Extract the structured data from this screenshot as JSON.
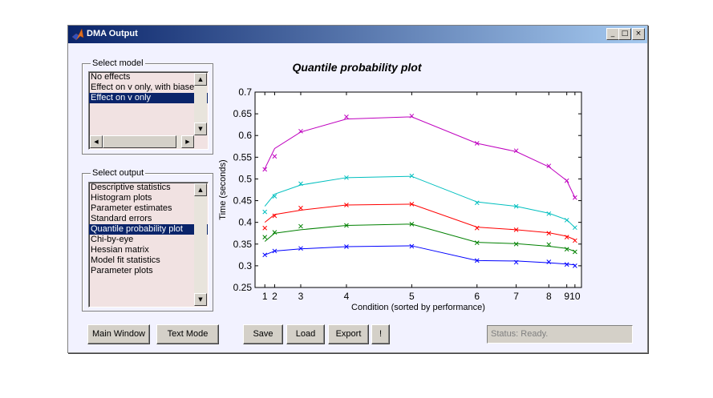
{
  "window": {
    "title": "DMA Output"
  },
  "titlebar_buttons": {
    "minimize": "_",
    "maximize": "□",
    "close": "×"
  },
  "model_group": {
    "label": "Select model",
    "items": [
      "No effects",
      "Effect on v only, with biase",
      "Effect on v only"
    ],
    "selected_index": 2
  },
  "output_group": {
    "label": "Select output",
    "items": [
      "Descriptive statistics",
      "Histogram plots",
      "Parameter estimates",
      "Standard errors",
      "Quantile probability plot",
      "Chi-by-eye",
      "Hessian matrix",
      "Model fit statistics",
      "Parameter plots"
    ],
    "selected_index": 4
  },
  "buttons": {
    "main_window": "Main Window",
    "text_mode": "Text Mode",
    "save": "Save",
    "load": "Load",
    "export": "Export",
    "bang": "!"
  },
  "status_text": "Status: Ready.",
  "chart_data": {
    "type": "line",
    "title": "Quantile probability plot",
    "xlabel": "Condition (sorted by performance)",
    "ylabel": "Time (seconds)",
    "ylim": [
      0.25,
      0.7
    ],
    "yticks": [
      0.25,
      0.3,
      0.35,
      0.4,
      0.45,
      0.5,
      0.55,
      0.6,
      0.65,
      0.7
    ],
    "xticks": [
      {
        "label": "1",
        "pos": 0.05
      },
      {
        "label": "2",
        "pos": 0.08
      },
      {
        "label": "3",
        "pos": 0.16
      },
      {
        "label": "4",
        "pos": 0.3
      },
      {
        "label": "5",
        "pos": 0.5
      },
      {
        "label": "6",
        "pos": 0.7
      },
      {
        "label": "7",
        "pos": 0.82
      },
      {
        "label": "8",
        "pos": 0.92
      },
      {
        "label": "9",
        "pos": 0.975
      },
      {
        "label": "10",
        "pos": 1.0
      }
    ],
    "xlim": [
      0.02,
      1.02
    ],
    "series": [
      {
        "color": "#0000ff",
        "points_x": [
          0.05,
          0.08,
          0.16,
          0.3,
          0.5,
          0.7,
          0.82,
          0.92,
          0.975,
          1.0
        ],
        "points_y": [
          0.325,
          0.334,
          0.34,
          0.344,
          0.345,
          0.312,
          0.308,
          0.309,
          0.303,
          0.3
        ],
        "line_x": [
          0.05,
          0.08,
          0.16,
          0.3,
          0.5,
          0.7,
          0.82,
          0.92,
          0.975,
          1.0
        ],
        "line_y": [
          0.325,
          0.334,
          0.339,
          0.344,
          0.346,
          0.312,
          0.311,
          0.307,
          0.304,
          0.302
        ]
      },
      {
        "color": "#008000",
        "points_x": [
          0.05,
          0.08,
          0.16,
          0.3,
          0.5,
          0.7,
          0.82,
          0.92,
          0.975,
          1.0
        ],
        "points_y": [
          0.366,
          0.377,
          0.391,
          0.393,
          0.396,
          0.353,
          0.35,
          0.349,
          0.338,
          0.332
        ],
        "line_x": [
          0.05,
          0.08,
          0.16,
          0.3,
          0.5,
          0.7,
          0.82,
          0.92,
          0.975,
          1.0
        ],
        "line_y": [
          0.356,
          0.375,
          0.383,
          0.393,
          0.396,
          0.354,
          0.351,
          0.345,
          0.34,
          0.333
        ]
      },
      {
        "color": "#ff0000",
        "points_x": [
          0.05,
          0.08,
          0.16,
          0.3,
          0.5,
          0.7,
          0.82,
          0.92,
          0.975,
          1.0
        ],
        "points_y": [
          0.387,
          0.415,
          0.433,
          0.44,
          0.442,
          0.387,
          0.383,
          0.375,
          0.366,
          0.358
        ],
        "line_x": [
          0.05,
          0.08,
          0.16,
          0.3,
          0.5,
          0.7,
          0.82,
          0.92,
          0.975,
          1.0
        ],
        "line_y": [
          0.4,
          0.418,
          0.428,
          0.44,
          0.442,
          0.389,
          0.383,
          0.376,
          0.368,
          0.36
        ],
        "extra_x": [
          0.05
        ],
        "extra_y": [
          0.4
        ]
      },
      {
        "color": "#00bfbf",
        "points_x": [
          0.05,
          0.08,
          0.16,
          0.3,
          0.5,
          0.7,
          0.82,
          0.92,
          0.975,
          1.0
        ],
        "points_y": [
          0.424,
          0.46,
          0.489,
          0.503,
          0.507,
          0.445,
          0.437,
          0.42,
          0.405,
          0.388
        ],
        "line_x": [
          0.05,
          0.08,
          0.16,
          0.3,
          0.5,
          0.7,
          0.82,
          0.92,
          0.975,
          1.0
        ],
        "line_y": [
          0.437,
          0.465,
          0.486,
          0.503,
          0.506,
          0.447,
          0.437,
          0.421,
          0.406,
          0.388
        ]
      },
      {
        "color": "#bf00bf",
        "points_x": [
          0.05,
          0.08,
          0.16,
          0.3,
          0.5,
          0.7,
          0.82,
          0.92,
          0.975,
          1.0
        ],
        "points_y": [
          0.522,
          0.552,
          0.61,
          0.643,
          0.645,
          0.582,
          0.565,
          0.53,
          0.496,
          0.457
        ],
        "line_x": [
          0.05,
          0.08,
          0.16,
          0.3,
          0.5,
          0.7,
          0.82,
          0.92,
          0.975,
          1.0
        ],
        "line_y": [
          0.524,
          0.57,
          0.608,
          0.638,
          0.643,
          0.582,
          0.563,
          0.528,
          0.496,
          0.457
        ]
      }
    ]
  }
}
